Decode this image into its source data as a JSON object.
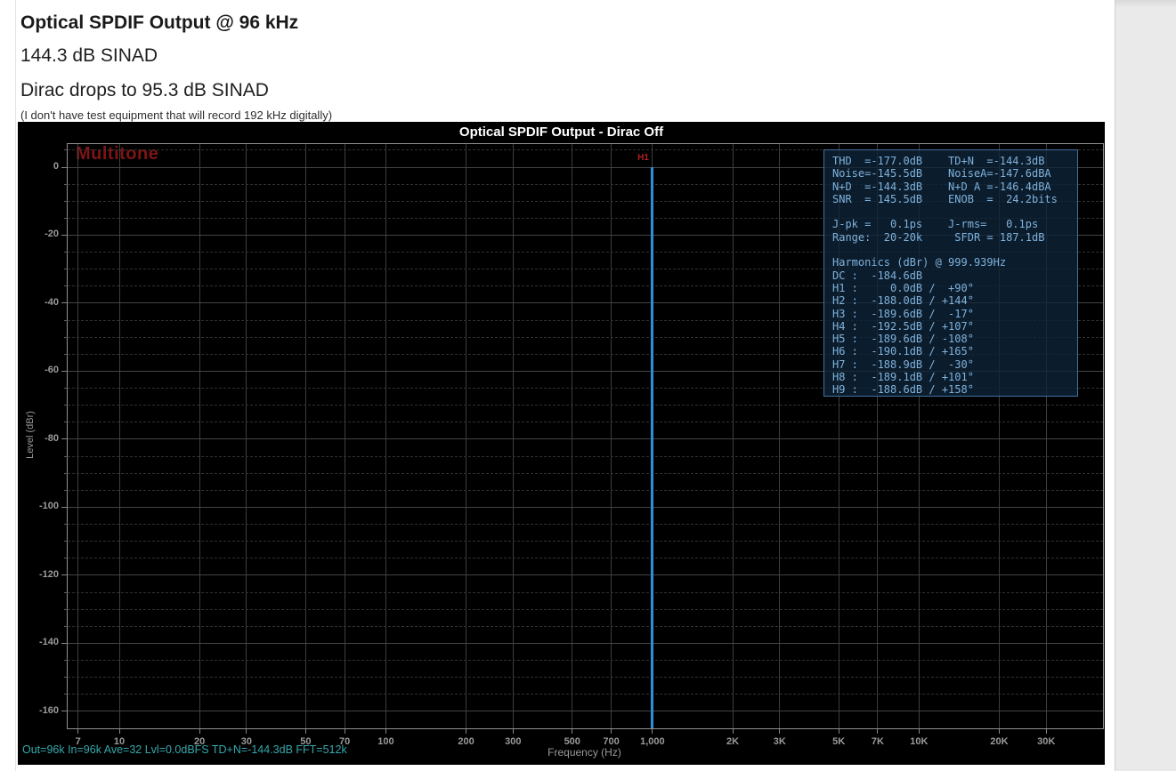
{
  "page": {
    "heading": "Optical SPDIF Output @ 96 kHz",
    "sinad_line": "144.3 dB SINAD",
    "dirac_line": "Dirac drops to 95.3 dB SINAD",
    "note": "(I don't have test equipment that will record 192 kHz digitally)"
  },
  "chart_data": {
    "type": "line",
    "title": "Optical SPDIF Output - Dirac Off",
    "xlabel": "Frequency (Hz)",
    "ylabel": "Level (dBr)",
    "x_scale": "log",
    "x_range_hz": [
      6.4,
      49000
    ],
    "y_range_dbr": [
      -165,
      6.8
    ],
    "grid": "on",
    "x_ticks": {
      "values": [
        7,
        10,
        20,
        30,
        50,
        70,
        100,
        200,
        300,
        500,
        700,
        1000,
        2000,
        3000,
        5000,
        7000,
        10000,
        20000,
        30000
      ],
      "labels": [
        "7",
        "10",
        "20",
        "30",
        "50",
        "70",
        "100",
        "200",
        "300",
        "500",
        "700",
        "1,000",
        "2K",
        "3K",
        "5K",
        "7K",
        "10K",
        "20K",
        "30K"
      ]
    },
    "y_major_ticks": [
      0,
      -20,
      -40,
      -60,
      -80,
      -100,
      -120,
      -140,
      -160
    ],
    "y_minor_step_db": 5,
    "series": [
      {
        "name": "1 kHz fundamental (H1) spectral line",
        "frequency_hz": 1000,
        "peak_dbr": 0.0,
        "color": "#2d8fd5"
      }
    ],
    "annotations": {
      "multitone": {
        "text": "Multitone",
        "color": "#7e1414"
      },
      "h1_marker": {
        "text": "H1",
        "color": "#b32020"
      }
    },
    "status_line": {
      "text": "Out=96k In=96k Ave=32 Lvl=0.0dBFS TD+N=-144.3dB FFT=512k",
      "color": "#35a8ad"
    },
    "stats_panel": {
      "text_color": "#7fb2dc",
      "lines": [
        "THD  =-177.0dB    TD+N  =-144.3dB",
        "Noise=-145.5dB    NoiseA=-147.6dBA",
        "N+D  =-144.3dB    N+D A =-146.4dBA",
        "SNR  = 145.5dB    ENOB  =  24.2bits",
        "",
        "J-pk =   0.1ps    J-rms=   0.1ps",
        "Range:  20-20k     SFDR = 187.1dB",
        "",
        "Harmonics (dBr) @ 999.939Hz",
        "DC :  -184.6dB",
        "H1 :     0.0dB /  +90°",
        "H2 :  -188.0dB / +144°",
        "H3 :  -189.6dB /  -17°",
        "H4 :  -192.5dB / +107°",
        "H5 :  -189.6dB / -108°",
        "H6 :  -190.1dB / +165°",
        "H7 :  -188.9dB /  -30°",
        "H8 :  -189.1dB / +101°",
        "H9 :  -188.6dB / +158°"
      ]
    }
  }
}
